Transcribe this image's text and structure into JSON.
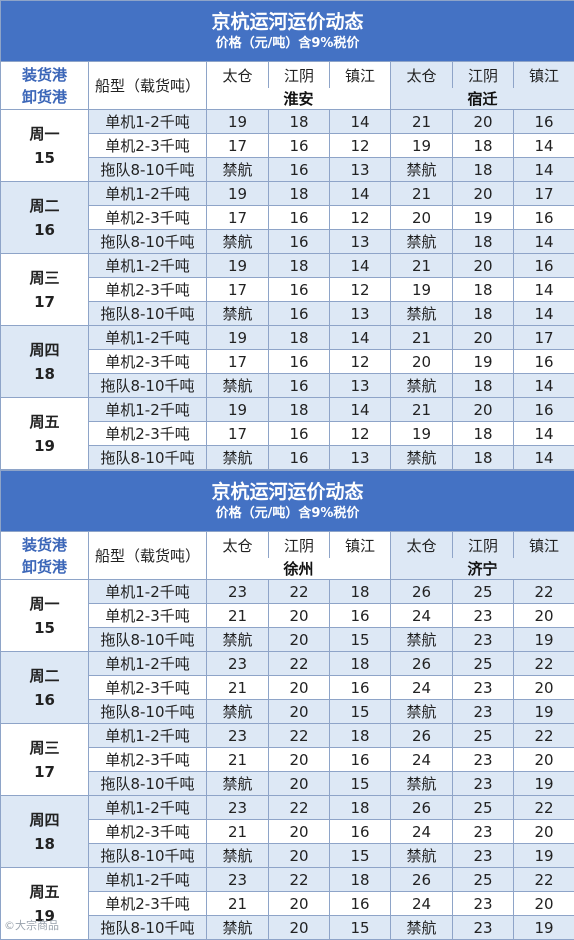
{
  "blocks": [
    {
      "title": "京杭运河运价动态",
      "subtitle": "价格（元/吨）含9%税价",
      "port_header_load": "装货港",
      "port_header_unload": "卸货港",
      "ship_header": "船型（载货吨）",
      "origins": [
        "太仓",
        "江阴",
        "镇江",
        "太仓",
        "江阴",
        "镇江"
      ],
      "destinations": [
        "淮安",
        "宿迁"
      ],
      "days": [
        {
          "day": "周一",
          "date": "15",
          "rows": [
            {
              "ship": "单机1-2千吨",
              "vals": [
                "19",
                "18",
                "14",
                "21",
                "20",
                "16"
              ]
            },
            {
              "ship": "单机2-3千吨",
              "vals": [
                "17",
                "16",
                "12",
                "19",
                "18",
                "14"
              ]
            },
            {
              "ship": "拖队8-10千吨",
              "vals": [
                "禁航",
                "16",
                "13",
                "禁航",
                "18",
                "14"
              ]
            }
          ]
        },
        {
          "day": "周二",
          "date": "16",
          "rows": [
            {
              "ship": "单机1-2千吨",
              "vals": [
                "19",
                "18",
                "14",
                "21",
                "20",
                "17"
              ]
            },
            {
              "ship": "单机2-3千吨",
              "vals": [
                "17",
                "16",
                "12",
                "20",
                "19",
                "16"
              ]
            },
            {
              "ship": "拖队8-10千吨",
              "vals": [
                "禁航",
                "16",
                "13",
                "禁航",
                "18",
                "14"
              ]
            }
          ]
        },
        {
          "day": "周三",
          "date": "17",
          "rows": [
            {
              "ship": "单机1-2千吨",
              "vals": [
                "19",
                "18",
                "14",
                "21",
                "20",
                "16"
              ]
            },
            {
              "ship": "单机2-3千吨",
              "vals": [
                "17",
                "16",
                "12",
                "19",
                "18",
                "14"
              ]
            },
            {
              "ship": "拖队8-10千吨",
              "vals": [
                "禁航",
                "16",
                "13",
                "禁航",
                "18",
                "14"
              ]
            }
          ]
        },
        {
          "day": "周四",
          "date": "18",
          "rows": [
            {
              "ship": "单机1-2千吨",
              "vals": [
                "19",
                "18",
                "14",
                "21",
                "20",
                "17"
              ]
            },
            {
              "ship": "单机2-3千吨",
              "vals": [
                "17",
                "16",
                "12",
                "20",
                "19",
                "16"
              ]
            },
            {
              "ship": "拖队8-10千吨",
              "vals": [
                "禁航",
                "16",
                "13",
                "禁航",
                "18",
                "14"
              ]
            }
          ]
        },
        {
          "day": "周五",
          "date": "19",
          "rows": [
            {
              "ship": "单机1-2千吨",
              "vals": [
                "19",
                "18",
                "14",
                "21",
                "20",
                "16"
              ]
            },
            {
              "ship": "单机2-3千吨",
              "vals": [
                "17",
                "16",
                "12",
                "19",
                "18",
                "14"
              ]
            },
            {
              "ship": "拖队8-10千吨",
              "vals": [
                "禁航",
                "16",
                "13",
                "禁航",
                "18",
                "14"
              ]
            }
          ]
        }
      ]
    },
    {
      "title": "京杭运河运价动态",
      "subtitle": "价格（元/吨）含9%税价",
      "port_header_load": "装货港",
      "port_header_unload": "卸货港",
      "ship_header": "船型（载货吨）",
      "origins": [
        "太仓",
        "江阴",
        "镇江",
        "太仓",
        "江阴",
        "镇江"
      ],
      "destinations": [
        "徐州",
        "济宁"
      ],
      "days": [
        {
          "day": "周一",
          "date": "15",
          "rows": [
            {
              "ship": "单机1-2千吨",
              "vals": [
                "23",
                "22",
                "18",
                "26",
                "25",
                "22"
              ]
            },
            {
              "ship": "单机2-3千吨",
              "vals": [
                "21",
                "20",
                "16",
                "24",
                "23",
                "20"
              ]
            },
            {
              "ship": "拖队8-10千吨",
              "vals": [
                "禁航",
                "20",
                "15",
                "禁航",
                "23",
                "19"
              ]
            }
          ]
        },
        {
          "day": "周二",
          "date": "16",
          "rows": [
            {
              "ship": "单机1-2千吨",
              "vals": [
                "23",
                "22",
                "18",
                "26",
                "25",
                "22"
              ]
            },
            {
              "ship": "单机2-3千吨",
              "vals": [
                "21",
                "20",
                "16",
                "24",
                "23",
                "20"
              ]
            },
            {
              "ship": "拖队8-10千吨",
              "vals": [
                "禁航",
                "20",
                "15",
                "禁航",
                "23",
                "19"
              ]
            }
          ]
        },
        {
          "day": "周三",
          "date": "17",
          "rows": [
            {
              "ship": "单机1-2千吨",
              "vals": [
                "23",
                "22",
                "18",
                "26",
                "25",
                "22"
              ]
            },
            {
              "ship": "单机2-3千吨",
              "vals": [
                "21",
                "20",
                "16",
                "24",
                "23",
                "20"
              ]
            },
            {
              "ship": "拖队8-10千吨",
              "vals": [
                "禁航",
                "20",
                "15",
                "禁航",
                "23",
                "19"
              ]
            }
          ]
        },
        {
          "day": "周四",
          "date": "18",
          "rows": [
            {
              "ship": "单机1-2千吨",
              "vals": [
                "23",
                "22",
                "18",
                "26",
                "25",
                "22"
              ]
            },
            {
              "ship": "单机2-3千吨",
              "vals": [
                "21",
                "20",
                "16",
                "24",
                "23",
                "20"
              ]
            },
            {
              "ship": "拖队8-10千吨",
              "vals": [
                "禁航",
                "20",
                "15",
                "禁航",
                "23",
                "19"
              ]
            }
          ]
        },
        {
          "day": "周五",
          "date": "19",
          "rows": [
            {
              "ship": "单机1-2千吨",
              "vals": [
                "23",
                "22",
                "18",
                "26",
                "25",
                "22"
              ]
            },
            {
              "ship": "单机2-3千吨",
              "vals": [
                "21",
                "20",
                "16",
                "24",
                "23",
                "20"
              ]
            },
            {
              "ship": "拖队8-10千吨",
              "vals": [
                "禁航",
                "20",
                "15",
                "禁航",
                "23",
                "19"
              ]
            }
          ]
        }
      ]
    }
  ],
  "watermark": "©大宗商品"
}
